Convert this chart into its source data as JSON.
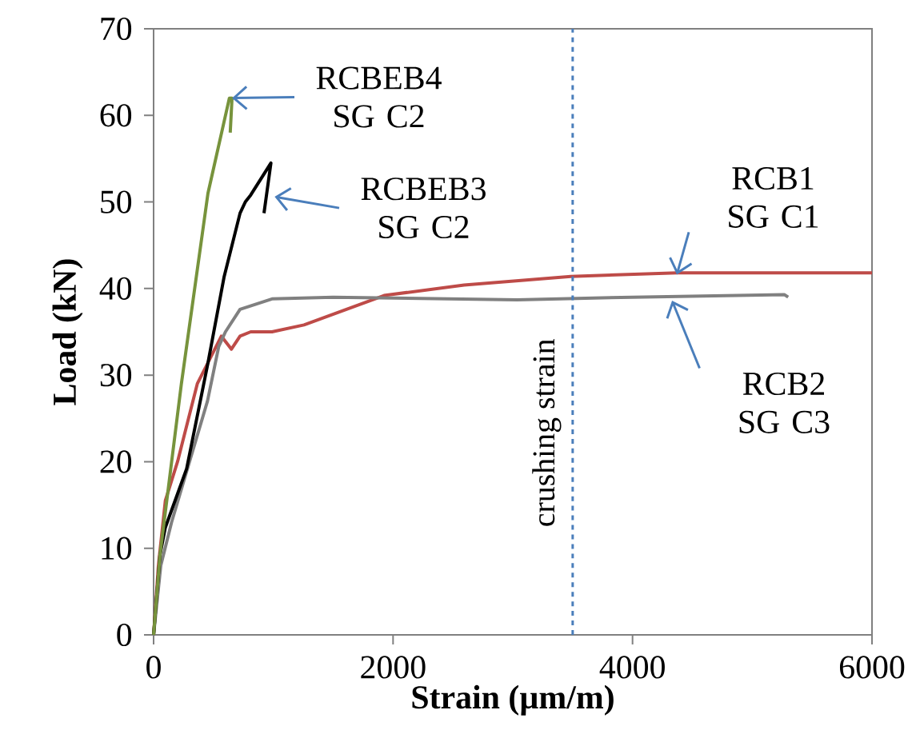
{
  "chart_data": {
    "type": "line",
    "xlabel": "Strain (µm/m)",
    "ylabel": "Load (kN)",
    "xlim": [
      0,
      6000
    ],
    "ylim": [
      0,
      70
    ],
    "xticks": [
      0,
      2000,
      4000,
      6000
    ],
    "yticks": [
      0,
      10,
      20,
      30,
      40,
      50,
      60,
      70
    ],
    "marker": "none",
    "line_style": "solid",
    "series": [
      {
        "color": "#be4b48",
        "x": [
          0,
          40,
          98,
          200,
          365,
          566,
          650,
          722,
          811,
          989,
          1256,
          1925,
          2593,
          3484,
          4374,
          6000
        ],
        "values": [
          0,
          8,
          15.5,
          20,
          29,
          34.5,
          33,
          34.5,
          35,
          35,
          35.8,
          39.2,
          40.4,
          41.4,
          41.8,
          41.8
        ]
      },
      {
        "color": "#808080",
        "x": [
          0,
          60,
          150,
          300,
          450,
          544,
          600,
          722,
          989,
          1500,
          3036,
          4000,
          5267,
          5300
        ],
        "values": [
          0,
          8,
          13,
          20,
          27,
          33.3,
          35,
          37.6,
          38.8,
          39,
          38.7,
          39,
          39.3,
          39
        ],
        "line_style": "solid"
      },
      {
        "color": "#000000",
        "x": [
          0,
          53,
          98,
          276,
          454,
          588,
          722,
          766,
          811,
          980,
          922
        ],
        "values": [
          0,
          9.2,
          12.4,
          19.2,
          31.4,
          41.3,
          48.7,
          50,
          50.8,
          54.5,
          48.7
        ]
      },
      {
        "color": "#77933c",
        "x": [
          0,
          53,
          232,
          454,
          633,
          655,
          640
        ],
        "values": [
          0,
          9.2,
          29,
          51,
          62,
          62,
          58
        ]
      }
    ],
    "ref_lines": [
      {
        "axis": "x",
        "value": 3500,
        "label": "crushing strain",
        "color": "#4a7ebb",
        "line_style": "dashed"
      }
    ],
    "annotations": [
      {
        "text": "RCBEB4 SG C2",
        "x": 655,
        "y": 62
      },
      {
        "text": "RCBEB3 SG C2",
        "x": 1011,
        "y": 50.6
      },
      {
        "text": "RCB1 SG C1",
        "x": 4370,
        "y": 41.6
      },
      {
        "text": "RCB2 SG C3",
        "x": 4330,
        "y": 38.6
      }
    ]
  }
}
